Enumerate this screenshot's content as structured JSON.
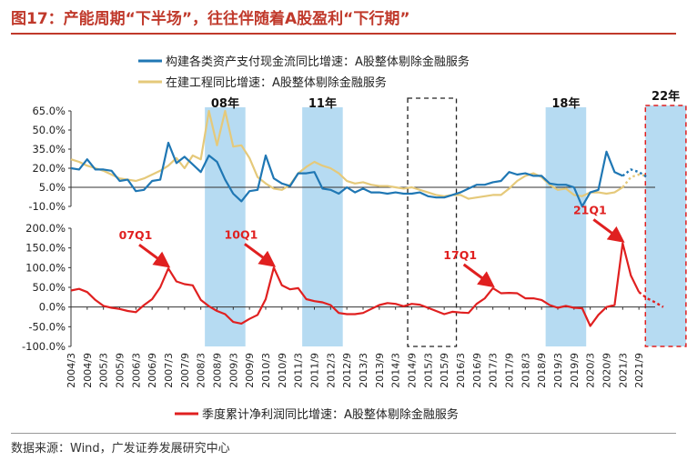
{
  "figure": {
    "title": "图17：产能周期“下半场”，往往伴随着A股盈利“下行期”",
    "source": "数据来源：Wind，广发证券发展研究中心"
  },
  "colors": {
    "capex": "#1f77b4",
    "construction": "#e5c97a",
    "profit": "#e02020",
    "highlight": "#a9d5f0",
    "accent": "#c0392b"
  },
  "chart_data": [
    {
      "type": "line",
      "panel": "upper",
      "ylim": [
        -10,
        65
      ],
      "yticks": [
        "65.0%",
        "50.0%",
        "35.0%",
        "20.0%",
        "5.0%",
        "-10.0%"
      ],
      "ytick_values": [
        65,
        50,
        35,
        20,
        5,
        -10
      ],
      "x_start_quarter": "2004/3",
      "series": [
        {
          "name": "构建各类资产支付现金流同比增速：A股整体剔除金融服务",
          "color": "#1f77b4",
          "values": [
            20,
            19,
            27,
            19,
            19,
            18,
            10,
            11,
            2,
            3,
            10,
            11,
            40,
            24,
            29,
            23,
            17,
            30,
            25,
            11,
            0,
            -6,
            2,
            3,
            30,
            12,
            8,
            6,
            16,
            16,
            17,
            4,
            3,
            0,
            5,
            1,
            4,
            1,
            1,
            0,
            1,
            0,
            0,
            1,
            -2,
            -3,
            -3,
            -1,
            1,
            4,
            7,
            7,
            9,
            10,
            17,
            15,
            16,
            14,
            14,
            8,
            7,
            7,
            5,
            -10,
            1,
            3,
            33,
            17,
            14
          ],
          "projection": [
            14,
            19,
            17,
            13
          ]
        },
        {
          "name": "在建工程同比增速：A股整体剔除金融服务",
          "color": "#e5c97a",
          "values": [
            27,
            25,
            22,
            20,
            18,
            15,
            12,
            11,
            10,
            12,
            15,
            18,
            22,
            28,
            20,
            30,
            27,
            65,
            38,
            65,
            37,
            38,
            28,
            13,
            8,
            4,
            3,
            7,
            16,
            21,
            25,
            22,
            20,
            16,
            10,
            8,
            9,
            7,
            6,
            6,
            5,
            4,
            5,
            3,
            1,
            -1,
            -2,
            -1,
            -1,
            -4,
            -3,
            -2,
            -1,
            -1,
            4,
            10,
            14,
            16,
            13,
            7,
            3,
            4,
            -1,
            -2,
            1,
            1,
            0,
            1,
            5
          ],
          "projection": [
            5,
            13,
            15,
            14
          ]
        }
      ]
    },
    {
      "type": "line",
      "panel": "lower",
      "ylim": [
        -100,
        200
      ],
      "yticks": [
        "200.0%",
        "150.0%",
        "100.0%",
        "50.0%",
        "0.0%",
        "-50.0%",
        "-100.0%"
      ],
      "ytick_values": [
        200,
        150,
        100,
        50,
        0,
        -50,
        -100
      ],
      "series": [
        {
          "name": "季度累计净利润同比增速：A股整体剔除金融服务",
          "color": "#e02020",
          "values": [
            42,
            46,
            38,
            18,
            3,
            -2,
            -5,
            -10,
            -13,
            5,
            20,
            50,
            98,
            65,
            58,
            55,
            18,
            2,
            -10,
            -18,
            -38,
            -42,
            -30,
            -20,
            20,
            100,
            55,
            45,
            48,
            20,
            15,
            12,
            5,
            -15,
            -18,
            -18,
            -15,
            -5,
            5,
            10,
            8,
            2,
            8,
            6,
            -2,
            -10,
            -18,
            -12,
            -14,
            -15,
            8,
            22,
            48,
            35,
            36,
            35,
            22,
            22,
            18,
            5,
            -2,
            3,
            -2,
            -3,
            -48,
            -20,
            0,
            5,
            162,
            80,
            38
          ],
          "projection": [
            38,
            22,
            12,
            0
          ]
        }
      ]
    }
  ],
  "x_ticks": [
    "2004/3",
    "2004/9",
    "2005/3",
    "2005/9",
    "2006/3",
    "2006/9",
    "2007/3",
    "2007/9",
    "2008/3",
    "2008/9",
    "2009/3",
    "2009/9",
    "2010/3",
    "2010/9",
    "2011/3",
    "2011/9",
    "2012/3",
    "2012/9",
    "2013/3",
    "2013/9",
    "2014/3",
    "2014/9",
    "2015/3",
    "2015/9",
    "2016/3",
    "2016/9",
    "2017/3",
    "2017/9",
    "2018/3",
    "2018/9",
    "2019/3",
    "2019/9",
    "2020/3",
    "2020/9",
    "2021/3",
    "2021/9"
  ],
  "bands": [
    {
      "label": "08年",
      "start": 16.5,
      "end": 21.5,
      "style": "fill"
    },
    {
      "label": "11年",
      "start": 28.5,
      "end": 33.5,
      "style": "fill"
    },
    {
      "label": "",
      "start": 41.5,
      "end": 47.5,
      "style": "dashed-black"
    },
    {
      "label": "18年",
      "start": 58.5,
      "end": 63.5,
      "style": "fill"
    },
    {
      "label": "22年",
      "start": 70.8,
      "end": 75.8,
      "style": "dashed-red"
    }
  ],
  "annotations": [
    {
      "label": "07Q1",
      "at": 12
    },
    {
      "label": "10Q1",
      "at": 25
    },
    {
      "label": "17Q1",
      "at": 52
    },
    {
      "label": "21Q1",
      "at": 68
    }
  ],
  "legend": {
    "upper_1": "构建各类资产支付现金流同比增速：A股整体剔除金融服务",
    "upper_2": "在建工程同比增速：A股整体剔除金融服务",
    "lower_1": "季度累计净利润同比增速：A股整体剔除金融服务"
  }
}
